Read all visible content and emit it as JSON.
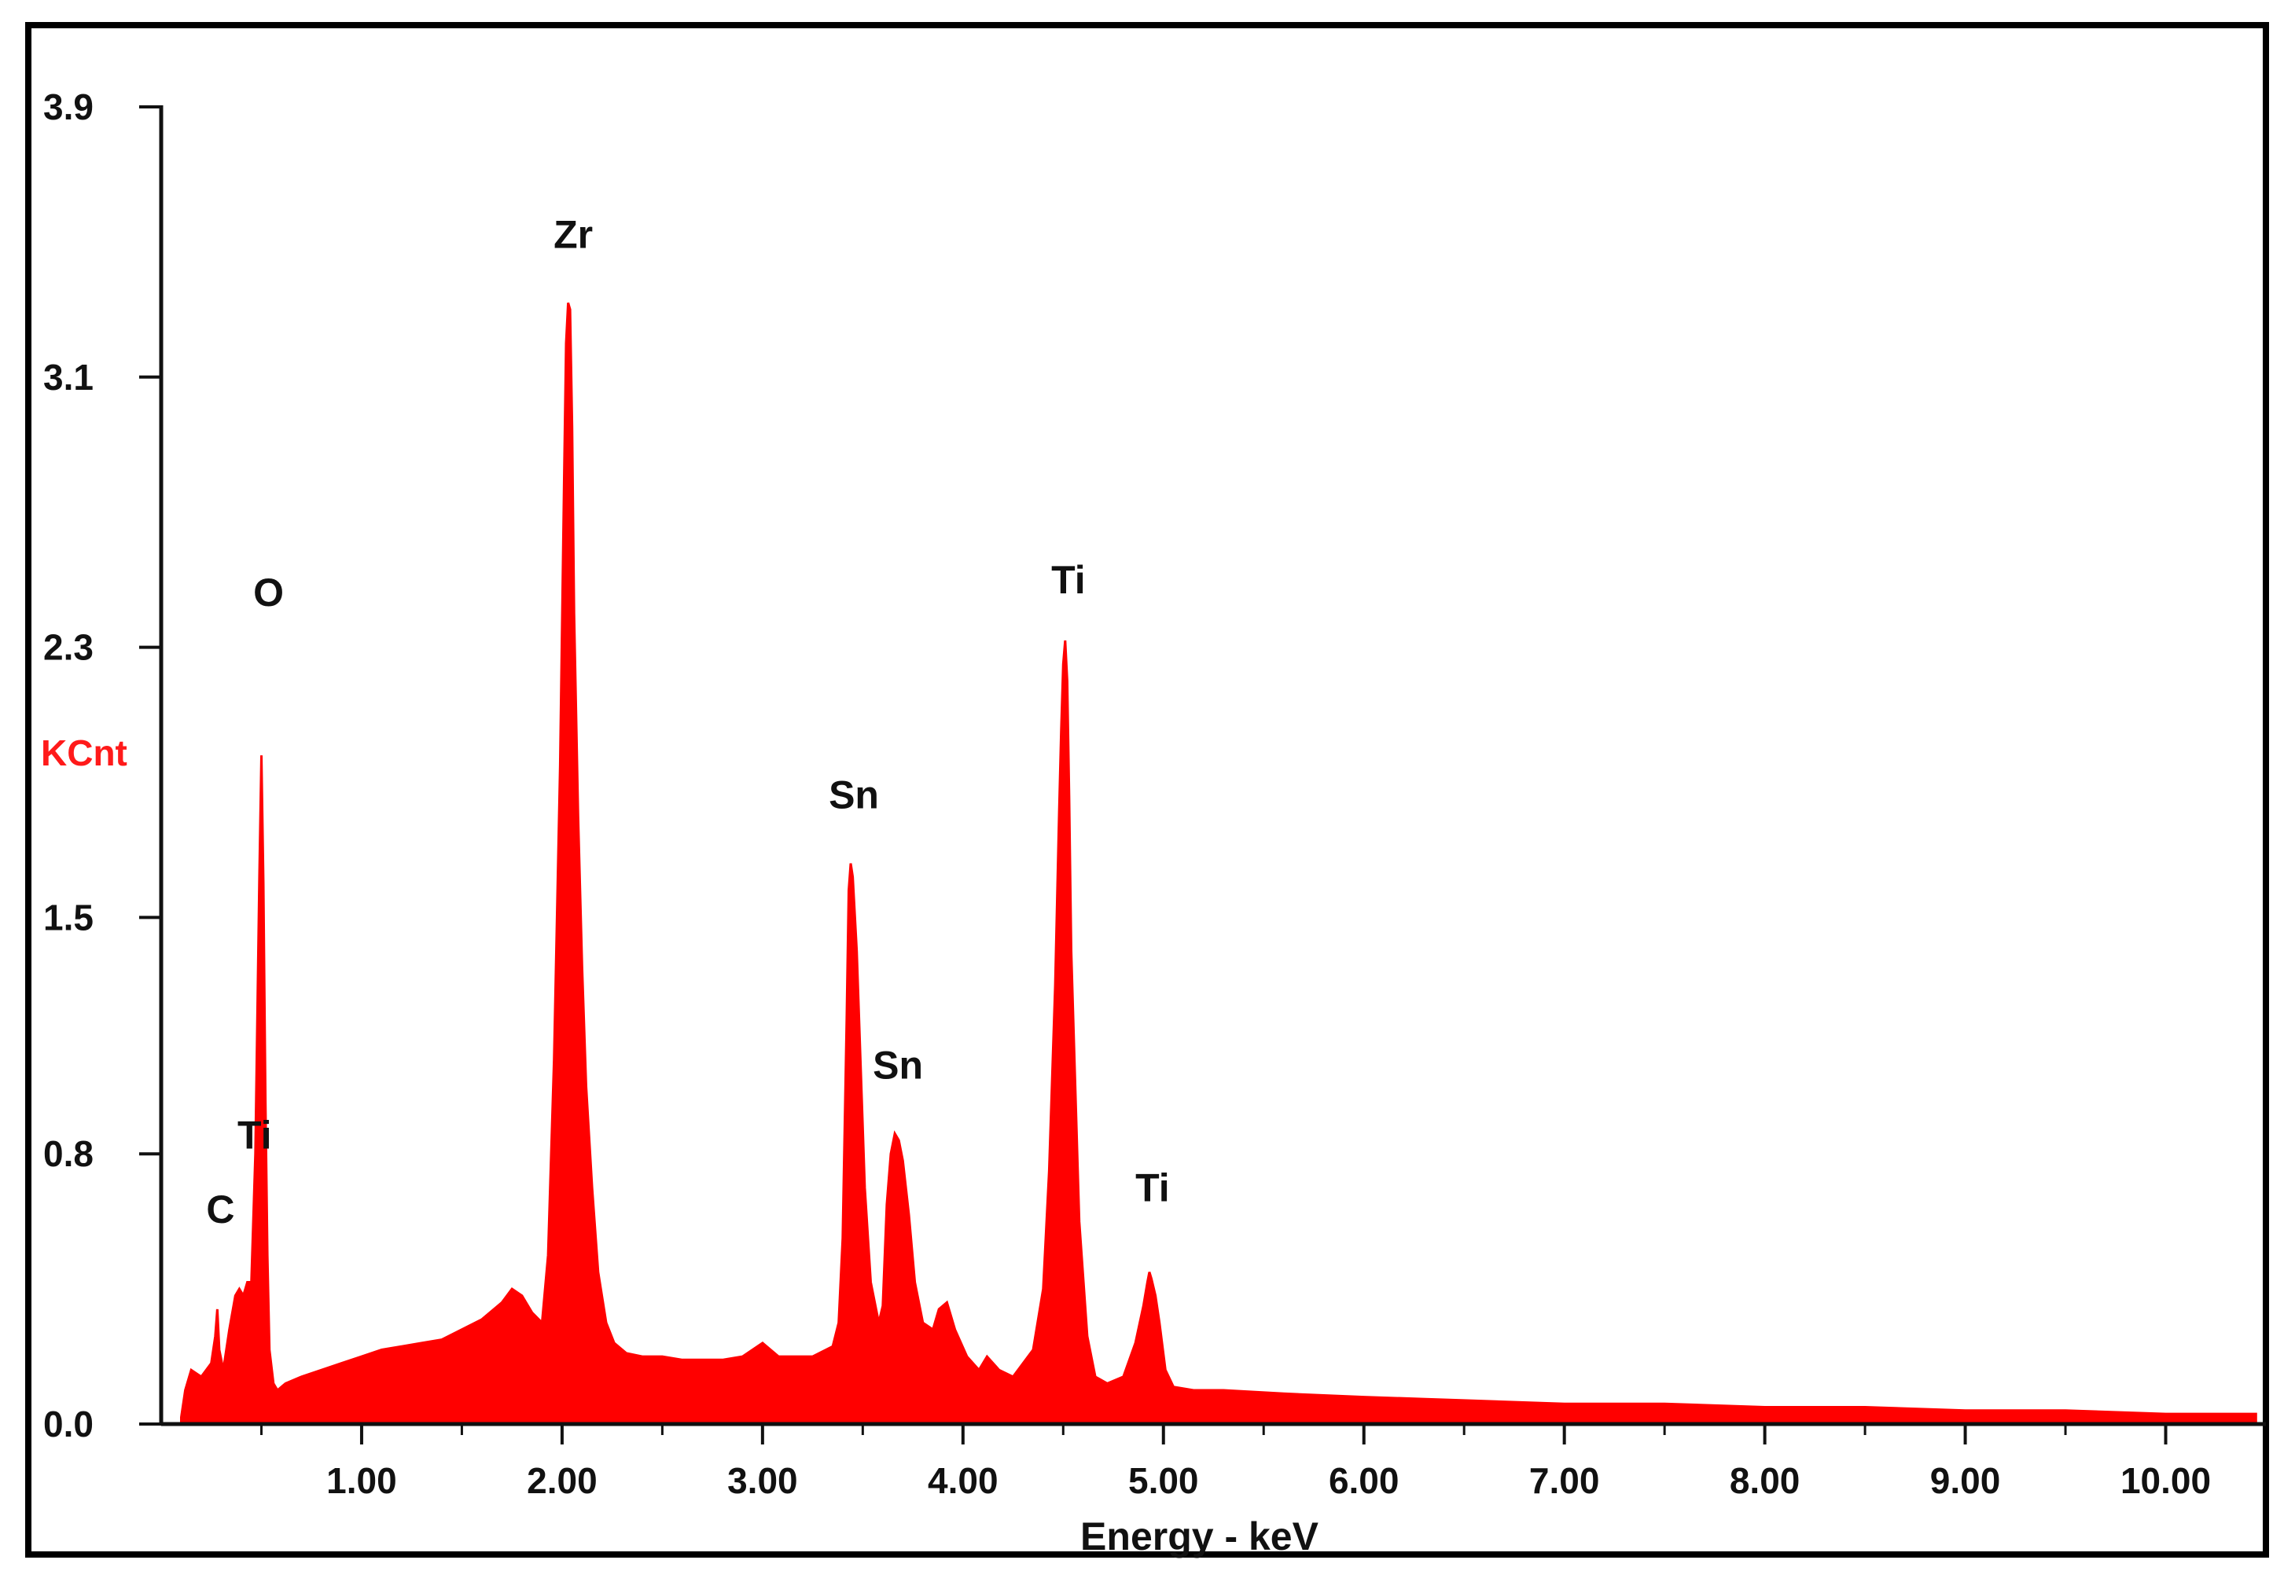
{
  "chart_data": {
    "type": "area",
    "title": "",
    "xlabel": "Energy - keV",
    "ylabel": "KCnt",
    "xlim": [
      0,
      10.5
    ],
    "ylim": [
      0,
      3.9
    ],
    "x_ticks": [
      "1.00",
      "2.00",
      "3.00",
      "4.00",
      "5.00",
      "6.00",
      "7.00",
      "8.00",
      "9.00",
      "10.00"
    ],
    "y_ticks": [
      "0.0",
      "0.8",
      "1.5",
      "2.3",
      "3.1",
      "3.9"
    ],
    "grid": false,
    "legend": "none",
    "colors": {
      "spectrum": "#ff0000",
      "unit_label": "#ff1a1a",
      "axis": "#111111",
      "frame": "#000000"
    },
    "peak_labels": [
      {
        "text": "C",
        "energy": 0.28
      },
      {
        "text": "Ti",
        "energy": 0.45
      },
      {
        "text": "O",
        "energy": 0.52
      },
      {
        "text": "Zr",
        "energy": 2.04
      },
      {
        "text": "Sn",
        "energy": 3.44
      },
      {
        "text": "Sn",
        "energy": 3.66
      },
      {
        "text": "Ti",
        "energy": 4.51
      },
      {
        "text": "Ti",
        "energy": 4.93
      }
    ],
    "series": [
      {
        "x": [
          0.1,
          0.12,
          0.15,
          0.2,
          0.25,
          0.27,
          0.28,
          0.29,
          0.31,
          0.34,
          0.37,
          0.39,
          0.41,
          0.43,
          0.45,
          0.47,
          0.49,
          0.5,
          0.51,
          0.52,
          0.53,
          0.54,
          0.56,
          0.58,
          0.62,
          0.7,
          0.8,
          0.9,
          1.0,
          1.1,
          1.2,
          1.3,
          1.4,
          1.5,
          1.6,
          1.7,
          1.75,
          1.8,
          1.85,
          1.9,
          1.93,
          1.96,
          1.99,
          2.01,
          2.02,
          2.03,
          2.04,
          2.05,
          2.06,
          2.08,
          2.1,
          2.12,
          2.15,
          2.18,
          2.22,
          2.26,
          2.32,
          2.4,
          2.5,
          2.6,
          2.7,
          2.8,
          2.9,
          3.0,
          3.04,
          3.08,
          3.15,
          3.25,
          3.35,
          3.38,
          3.4,
          3.42,
          3.43,
          3.44,
          3.45,
          3.47,
          3.49,
          3.51,
          3.54,
          3.58,
          3.6,
          3.62,
          3.64,
          3.66,
          3.68,
          3.7,
          3.73,
          3.76,
          3.8,
          3.85,
          3.88,
          3.92,
          3.96,
          4.02,
          4.08,
          4.12,
          4.18,
          4.25,
          4.35,
          4.4,
          4.43,
          4.46,
          4.48,
          4.49,
          4.5,
          4.51,
          4.52,
          4.53,
          4.54,
          4.56,
          4.58,
          4.62,
          4.66,
          4.72,
          4.8,
          4.86,
          4.9,
          4.92,
          4.93,
          4.94,
          4.96,
          4.98,
          5.01,
          5.05,
          5.15,
          5.3,
          5.6,
          6.0,
          6.5,
          7.0,
          7.5,
          8.0,
          8.5,
          9.0,
          9.5,
          10.0,
          10.45
        ],
        "y": [
          0.02,
          0.1,
          0.16,
          0.14,
          0.18,
          0.26,
          0.34,
          0.22,
          0.16,
          0.28,
          0.38,
          0.4,
          0.38,
          0.42,
          0.42,
          0.8,
          1.62,
          1.98,
          1.6,
          0.96,
          0.5,
          0.22,
          0.12,
          0.1,
          0.12,
          0.14,
          0.16,
          0.18,
          0.2,
          0.22,
          0.23,
          0.24,
          0.25,
          0.28,
          0.31,
          0.36,
          0.4,
          0.38,
          0.33,
          0.3,
          0.5,
          1.08,
          1.95,
          2.8,
          3.2,
          3.32,
          3.3,
          2.95,
          2.4,
          1.8,
          1.35,
          1.0,
          0.7,
          0.45,
          0.3,
          0.24,
          0.21,
          0.2,
          0.2,
          0.19,
          0.19,
          0.19,
          0.2,
          0.24,
          0.22,
          0.2,
          0.2,
          0.2,
          0.23,
          0.3,
          0.55,
          1.2,
          1.58,
          1.66,
          1.62,
          1.4,
          1.05,
          0.7,
          0.42,
          0.3,
          0.35,
          0.65,
          0.8,
          0.86,
          0.84,
          0.78,
          0.62,
          0.42,
          0.3,
          0.28,
          0.34,
          0.36,
          0.28,
          0.2,
          0.16,
          0.2,
          0.16,
          0.14,
          0.22,
          0.4,
          0.75,
          1.3,
          1.82,
          2.05,
          2.25,
          2.32,
          2.2,
          1.85,
          1.4,
          1.0,
          0.6,
          0.26,
          0.14,
          0.12,
          0.14,
          0.24,
          0.35,
          0.42,
          0.45,
          0.43,
          0.38,
          0.3,
          0.16,
          0.11,
          0.1,
          0.1,
          0.09,
          0.08,
          0.07,
          0.06,
          0.06,
          0.05,
          0.05,
          0.04,
          0.04,
          0.03,
          0.03
        ]
      }
    ]
  }
}
